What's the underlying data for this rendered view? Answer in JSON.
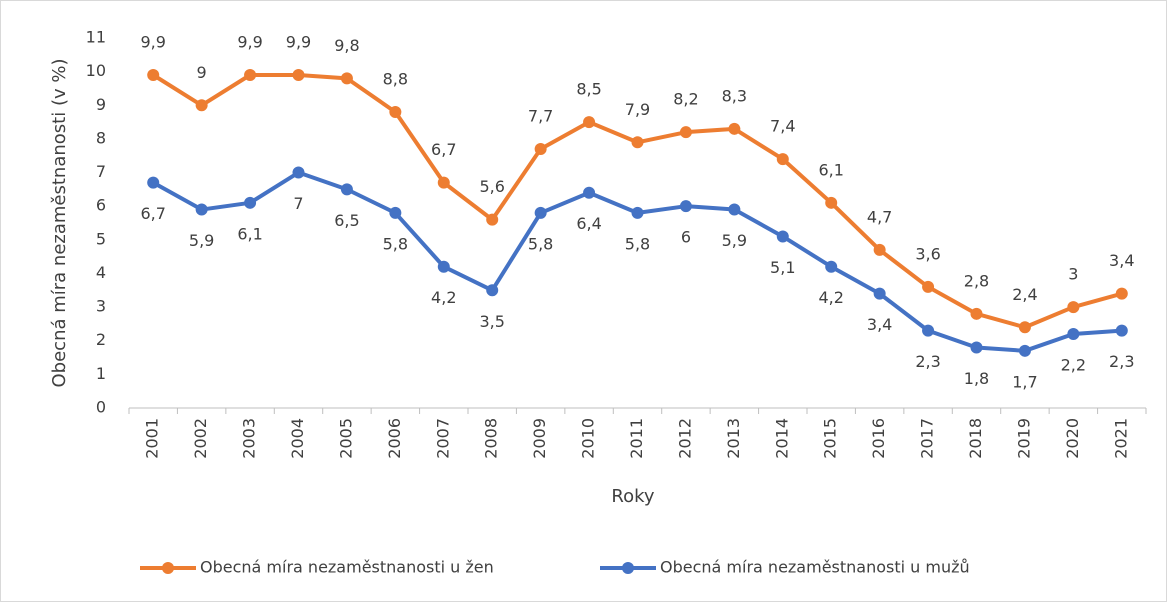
{
  "chart_data": {
    "type": "line",
    "y_label": "Obecná míra nezaměstnanosti (v %)",
    "x_label": "Roky",
    "categories": [
      "2001",
      "2002",
      "2003",
      "2004",
      "2005",
      "2006",
      "2007",
      "2008",
      "2009",
      "2010",
      "2011",
      "2012",
      "2013",
      "2014",
      "2015",
      "2016",
      "2017",
      "2018",
      "2019",
      "2020",
      "2021"
    ],
    "series": [
      {
        "name": "Obecná míra nezaměstnanosti u žen",
        "color": "#ed7d31",
        "values": [
          9.9,
          9,
          9.9,
          9.9,
          9.8,
          8.8,
          6.7,
          5.6,
          7.7,
          8.5,
          7.9,
          8.2,
          8.3,
          7.4,
          6.1,
          4.7,
          3.6,
          2.8,
          2.4,
          3,
          3.4
        ],
        "value_labels": [
          "9,9",
          "9",
          "9,9",
          "9,9",
          "9,8",
          "8,8",
          "6,7",
          "5,6",
          "7,7",
          "8,5",
          "7,9",
          "8,2",
          "8,3",
          "7,4",
          "6,1",
          "4,7",
          "3,6",
          "2,8",
          "2,4",
          "3",
          "3,4"
        ]
      },
      {
        "name": "Obecná míra nezaměstnanosti u mužů",
        "color": "#4472c4",
        "values": [
          6.7,
          5.9,
          6.1,
          7,
          6.5,
          5.8,
          4.2,
          3.5,
          5.8,
          6.4,
          5.8,
          6,
          5.9,
          5.1,
          4.2,
          3.4,
          2.3,
          1.8,
          1.7,
          2.2,
          2.3
        ],
        "value_labels": [
          "6,7",
          "5,9",
          "6,1",
          "7",
          "6,5",
          "5,8",
          "4,2",
          "3,5",
          "5,8",
          "6,4",
          "5,8",
          "6",
          "5,9",
          "5,1",
          "4,2",
          "3,4",
          "2,3",
          "1,8",
          "1,7",
          "2,2",
          "2,3"
        ]
      }
    ],
    "ylim": [
      0,
      11
    ],
    "yticks": [
      0,
      1,
      2,
      3,
      4,
      5,
      6,
      7,
      8,
      9,
      10,
      11
    ],
    "grid": false,
    "legend": "bottom"
  }
}
